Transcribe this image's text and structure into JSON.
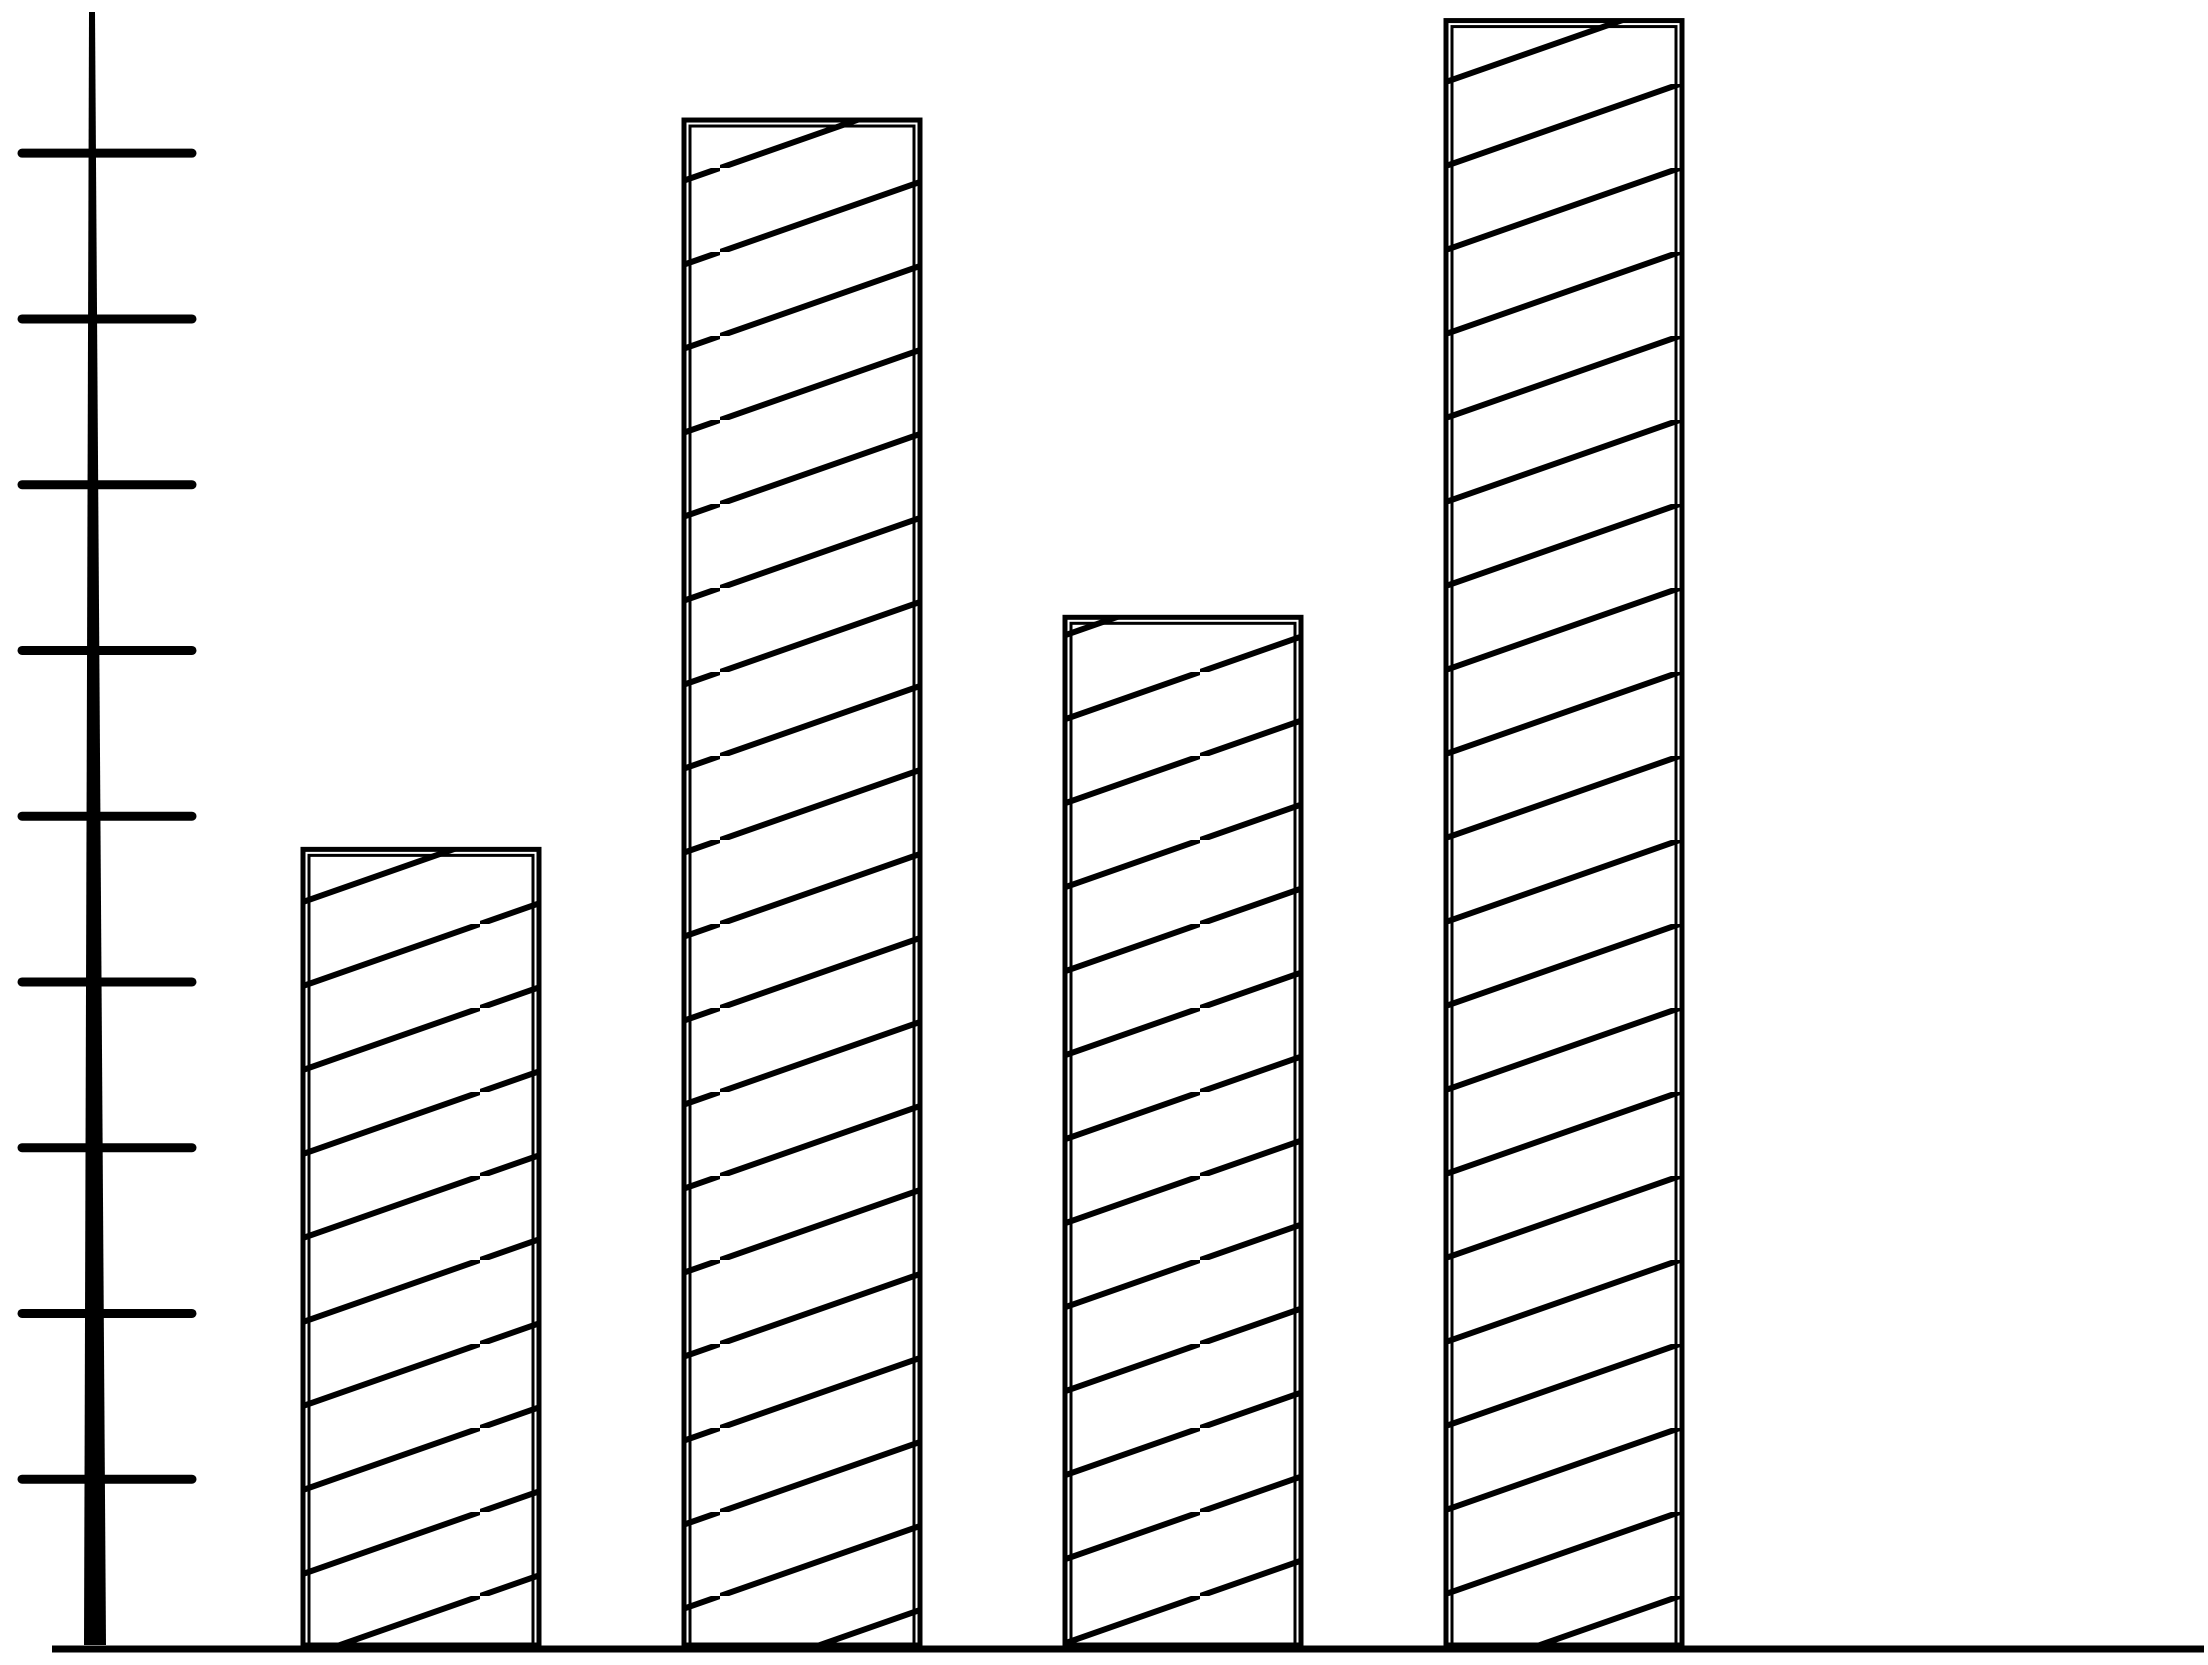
{
  "chart_data": {
    "type": "bar",
    "categories": [
      null,
      null,
      null,
      null
    ],
    "values": [
      4.8,
      9.2,
      6.2,
      9.8
    ],
    "color": "#000000",
    "ylim": [
      0,
      9.9
    ],
    "yticks": [
      1,
      2,
      3,
      4,
      5,
      6,
      7,
      8,
      9
    ]
  }
}
